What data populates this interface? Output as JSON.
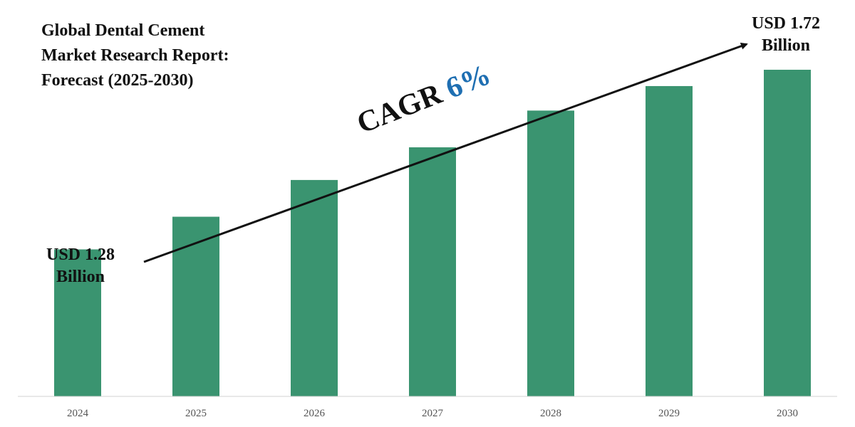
{
  "chart_data": {
    "type": "bar",
    "title_lines": [
      "Global Dental Cement",
      "Market Research Report:",
      "Forecast (2025-2030)"
    ],
    "categories": [
      "2024",
      "2025",
      "2026",
      "2027",
      "2028",
      "2029",
      "2030"
    ],
    "values": [
      1.28,
      1.36,
      1.45,
      1.53,
      1.62,
      1.68,
      1.72
    ],
    "ylim": [
      0.92,
      1.72
    ],
    "unit": "USD Billion",
    "bar_color": "#3a9470",
    "annotations": {
      "start_line1": "USD 1.28",
      "start_line2": "Billion",
      "end_line1": "USD 1.72",
      "end_line2": "Billion",
      "cagr_label": "CAGR",
      "cagr_value": "6%"
    }
  }
}
